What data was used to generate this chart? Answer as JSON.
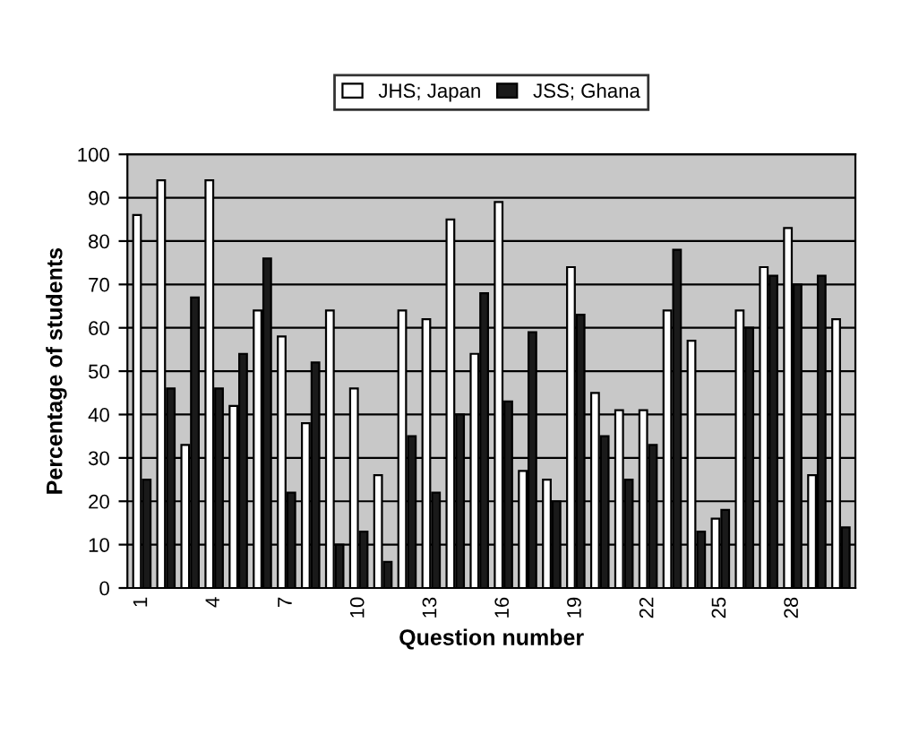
{
  "chart_data": {
    "type": "bar",
    "xlabel": "Question number",
    "ylabel": "Percentage of students",
    "categories": [
      "1",
      null,
      null,
      "4",
      null,
      null,
      "7",
      null,
      null,
      "10",
      null,
      null,
      "13",
      null,
      null,
      "16",
      null,
      null,
      "19",
      null,
      null,
      "22",
      null,
      null,
      "25",
      null,
      null,
      "28",
      null,
      null
    ],
    "series": [
      {
        "name": "JHS; Japan",
        "color": "#ffffff",
        "values": [
          86,
          94,
          33,
          94,
          42,
          64,
          58,
          38,
          64,
          46,
          26,
          64,
          62,
          85,
          54,
          89,
          27,
          25,
          74,
          45,
          41,
          41,
          64,
          57,
          16,
          64,
          74,
          83,
          26,
          62
        ]
      },
      {
        "name": "JSS; Ghana",
        "color": "#1a1a1a",
        "values": [
          25,
          46,
          67,
          46,
          54,
          76,
          22,
          52,
          10,
          13,
          6,
          35,
          22,
          40,
          68,
          43,
          59,
          20,
          63,
          35,
          25,
          33,
          78,
          13,
          18,
          60,
          72,
          70,
          72,
          14
        ]
      }
    ],
    "ylim": [
      0,
      100
    ],
    "yticks": [
      0,
      10,
      20,
      30,
      40,
      50,
      60,
      70,
      80,
      90,
      100
    ],
    "grid": "y",
    "legend": "top"
  }
}
